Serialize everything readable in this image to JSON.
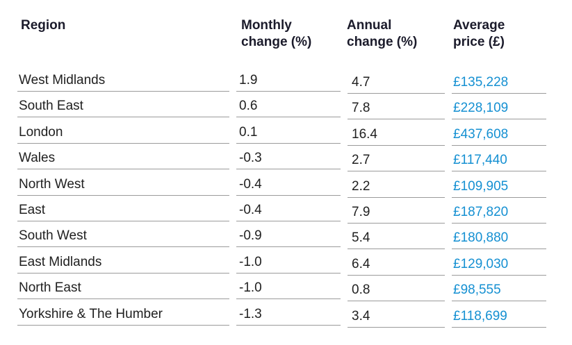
{
  "table": {
    "headers": [
      "Region",
      "Monthly change (%)",
      "Annual change (%)",
      "Average price (£)"
    ],
    "rows": [
      [
        "West Midlands",
        "1.9",
        "4.7",
        "£135,228"
      ],
      [
        "South East",
        "0.6",
        "7.8",
        "£228,109"
      ],
      [
        "London",
        "0.1",
        "16.4",
        "£437,608"
      ],
      [
        "Wales",
        "-0.3",
        "2.7",
        "£117,440"
      ],
      [
        "North West",
        "-0.4",
        "2.2",
        "£109,905"
      ],
      [
        "East",
        "-0.4",
        "7.9",
        "£187,820"
      ],
      [
        "South West",
        "-0.9",
        "5.4",
        "£180,880"
      ],
      [
        "East Midlands",
        "-1.0",
        "6.4",
        "£129,030"
      ],
      [
        "North East",
        "-1.0",
        "0.8",
        "£98,555"
      ],
      [
        "Yorkshire & The Humber",
        "-1.3",
        "3.4",
        "£118,699"
      ]
    ]
  }
}
